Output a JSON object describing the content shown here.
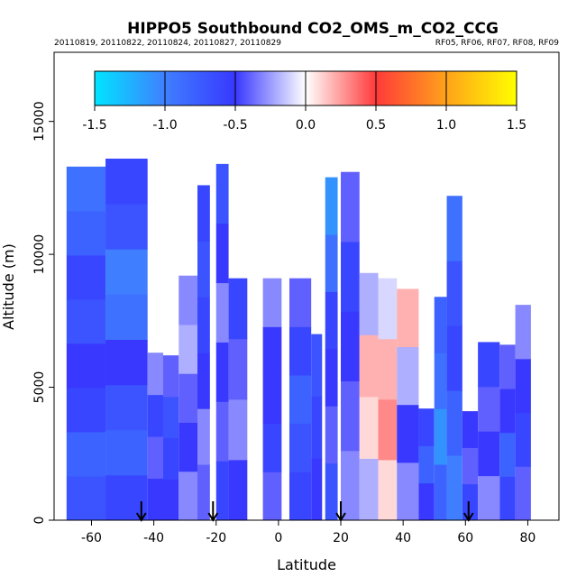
{
  "chart_data": {
    "type": "heatmap",
    "title": "HIPPO5 Southbound CO2_OMS_m_CO2_CCG",
    "subtitle_left": "20110819, 20110822, 20110824, 20110827, 20110829",
    "subtitle_right": "RF05, RF06, RF07, RF08, RF09",
    "xlabel": "Latitude",
    "ylabel": "Altitude (m)",
    "xlim": [
      -72,
      90
    ],
    "ylim": [
      0,
      17600
    ],
    "xticks": [
      -60,
      -40,
      -20,
      0,
      20,
      40,
      60,
      80
    ],
    "xtick_labels": [
      "-60",
      "-40",
      "-20",
      "0",
      "20",
      "40",
      "60",
      "80"
    ],
    "yticks": [
      0,
      5000,
      10000,
      15000
    ],
    "ytick_labels": [
      "0",
      "5000",
      "10000",
      "15000"
    ],
    "colorbar": {
      "range": [
        -1.5,
        1.5
      ],
      "ticks": [
        -1.5,
        -1.0,
        -0.5,
        0.0,
        0.5,
        1.0,
        1.5
      ],
      "tick_labels": [
        "-1.5",
        "-1.0",
        "-0.5",
        "0.0",
        "0.5",
        "1.0",
        "1.5"
      ],
      "colors": [
        "#00e5ff",
        "#3f7fff",
        "#3838ff",
        "#ffffff",
        "#ff3a3a",
        "#ffa21a",
        "#ffff00"
      ]
    },
    "profile_markers_lat": [
      -44,
      -21,
      20,
      61
    ],
    "columns": [
      {
        "x0": -68,
        "x1": -55.5,
        "top": 13300,
        "values": [
          -0.7,
          -0.8,
          -0.6,
          -0.5,
          -0.7,
          -0.6,
          -0.8,
          -0.9
        ]
      },
      {
        "x0": -55.5,
        "x1": -42,
        "top": 13600,
        "values": [
          -0.6,
          -0.8,
          -0.7,
          -0.5,
          -0.9,
          -1.0,
          -0.7,
          -0.6
        ]
      },
      {
        "x0": -42,
        "x1": -37,
        "top": 6300,
        "values": [
          -0.5,
          -0.4,
          -0.6,
          -0.3
        ]
      },
      {
        "x0": -37,
        "x1": -32,
        "top": 6200,
        "values": [
          -0.5,
          -0.6,
          -0.7,
          -0.4
        ]
      },
      {
        "x0": -32,
        "x1": -26,
        "top": 9200,
        "values": [
          -0.3,
          -0.5,
          -0.4,
          -0.2,
          -0.3
        ]
      },
      {
        "x0": -26,
        "x1": -22,
        "top": 12600,
        "values": [
          -0.4,
          -0.3,
          -0.5,
          -0.6,
          -0.7,
          -0.6
        ]
      },
      {
        "x0": -20,
        "x1": -16,
        "top": 13400,
        "values": [
          -0.6,
          -0.4,
          -0.5,
          -0.3,
          -0.5,
          -0.7
        ]
      },
      {
        "x0": -16,
        "x1": -10,
        "top": 9100,
        "values": [
          -0.5,
          -0.3,
          -0.4,
          -0.6
        ]
      },
      {
        "x0": -5,
        "x1": 1,
        "top": 9100,
        "values": [
          -0.4,
          -0.6,
          -0.5,
          -0.5,
          -0.3
        ]
      },
      {
        "x0": 3.5,
        "x1": 10.5,
        "top": 9100,
        "values": [
          -0.6,
          -0.7,
          -0.8,
          -0.6,
          -0.4
        ]
      },
      {
        "x0": 10.5,
        "x1": 14,
        "top": 7000,
        "values": [
          -0.5,
          -0.6,
          -0.7
        ]
      },
      {
        "x0": 15,
        "x1": 19,
        "top": 12900,
        "values": [
          -0.7,
          -0.4,
          -0.5,
          -0.6,
          -0.9,
          -1.1
        ]
      },
      {
        "x0": 20,
        "x1": 26,
        "top": 13100,
        "values": [
          -0.3,
          -0.4,
          -0.5,
          -0.6,
          -0.4
        ]
      },
      {
        "x0": 26,
        "x1": 32,
        "top": 9300,
        "values": [
          -0.2,
          0.1,
          0.2,
          -0.2
        ]
      },
      {
        "x0": 32,
        "x1": 38,
        "top": 9100,
        "values": [
          0.1,
          0.3,
          0.2,
          -0.1
        ]
      },
      {
        "x0": 38,
        "x1": 45,
        "top": 8700,
        "values": [
          -0.3,
          -0.5,
          -0.2,
          0.2
        ]
      },
      {
        "x0": 45,
        "x1": 50,
        "top": 4200,
        "values": [
          -0.5,
          -0.8,
          -0.6
        ]
      },
      {
        "x0": 50,
        "x1": 54,
        "top": 8400,
        "values": [
          -0.8,
          -1.1,
          -0.9,
          -0.8
        ]
      },
      {
        "x0": 54,
        "x1": 59,
        "top": 12200,
        "values": [
          -1.0,
          -0.8,
          -0.6,
          -0.7,
          -0.9
        ]
      },
      {
        "x0": 59,
        "x1": 64,
        "top": 4100,
        "values": [
          -0.6,
          -0.4,
          -0.5
        ]
      },
      {
        "x0": 64,
        "x1": 71,
        "top": 6700,
        "values": [
          -0.3,
          -0.5,
          -0.4,
          -0.6
        ]
      },
      {
        "x0": 71,
        "x1": 76,
        "top": 6600,
        "values": [
          -0.6,
          -0.8,
          -0.5,
          -0.4
        ]
      },
      {
        "x0": 76,
        "x1": 81,
        "top": 8100,
        "values": [
          -0.4,
          -0.6,
          -0.5,
          -0.3
        ]
      }
    ]
  }
}
